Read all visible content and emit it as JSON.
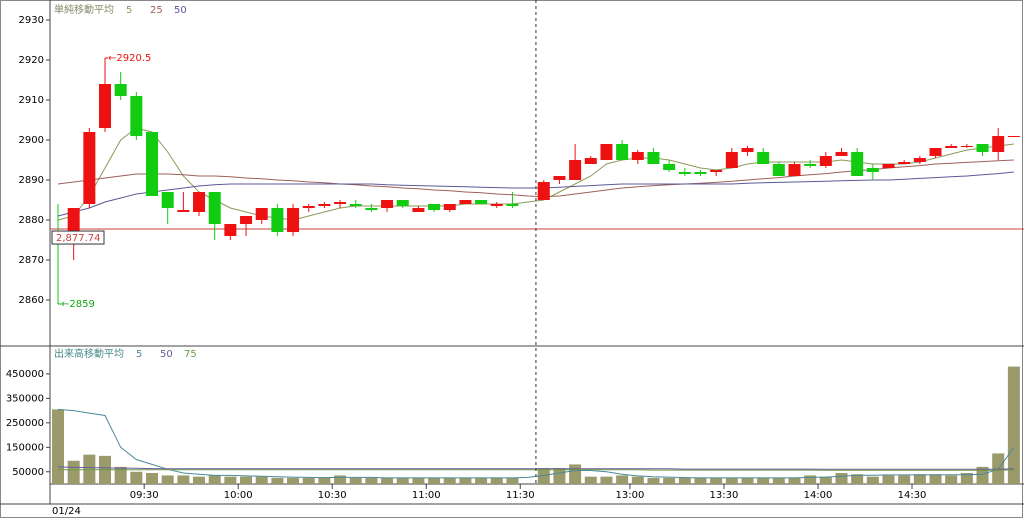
{
  "chart_data": [
    {
      "type": "candlestick",
      "legend_title": "単純移動平均",
      "ylim": [
        2848.75,
        2935
      ],
      "yticks": [
        2860,
        2870,
        2880,
        2890,
        2900,
        2910,
        2920,
        2930
      ],
      "up_color": "#ee1111",
      "down_color": "#11cc11",
      "open": [
        2877,
        2875,
        2884,
        2903,
        2914,
        2911,
        2902,
        2887,
        2882,
        2882,
        2887,
        2876,
        2879,
        2880,
        2883,
        2877,
        2883,
        2883.5,
        2884,
        2884,
        2883,
        2883,
        2885,
        2882,
        2884,
        2882.5,
        2884,
        2885,
        2883.5,
        2884,
        null,
        2885,
        2890,
        2890,
        2894,
        2895,
        2899,
        2895,
        2897,
        2894,
        2892,
        2892,
        2892,
        2893,
        2897,
        2897,
        2894,
        2891,
        2894,
        2893.5,
        2896,
        2897,
        2893,
        2893,
        2894,
        2894.5,
        2896,
        2898,
        2898.5,
        2899,
        2897,
        2901
      ],
      "high": [
        2884,
        2883,
        2903,
        2920.5,
        2917,
        2912,
        2902,
        2887,
        2887,
        2887,
        2887,
        2879,
        2881,
        2883,
        2884,
        2884,
        2884,
        2884.5,
        2885,
        2885,
        2884,
        2885,
        2885,
        2883.5,
        2884,
        2884,
        2885,
        2885,
        2884.5,
        2887,
        null,
        2890,
        2891,
        2899,
        2896,
        2899,
        2900,
        2897.5,
        2898,
        2895,
        2893,
        2892.5,
        2892.5,
        2898,
        2898.5,
        2898,
        2894.5,
        2894.5,
        2895,
        2897,
        2898,
        2898,
        2894,
        2894,
        2895,
        2896,
        2898,
        2899,
        2899,
        2899,
        2903,
        2901
      ],
      "low": [
        2859,
        2870,
        2883,
        2902,
        2910,
        2900,
        2886,
        2879,
        2882,
        2881,
        2875,
        2875,
        2876,
        2879,
        2876,
        2876,
        2882,
        2883,
        2883,
        2883,
        2882,
        2882,
        2883,
        2882,
        2882,
        2882,
        2884,
        2884,
        2883,
        2883,
        null,
        2885,
        2889,
        2890,
        2894,
        2895,
        2895,
        2894,
        2894,
        2892,
        2891,
        2891,
        2891,
        2893,
        2896,
        2894,
        2891,
        2891,
        2893,
        2893,
        2896,
        2891,
        2890,
        2893,
        2894,
        2894,
        2895.5,
        2898,
        2898,
        2896,
        2895,
        2901
      ],
      "close": [
        2875,
        2883,
        2902,
        2914,
        2911,
        2901,
        2886,
        2883,
        2882.5,
        2887,
        2879,
        2879,
        2881,
        2883,
        2877,
        2883,
        2883.5,
        2884,
        2884.5,
        2883.5,
        2882.5,
        2885,
        2883.5,
        2883,
        2882.5,
        2884,
        2885,
        2884,
        2884,
        2883.5,
        null,
        2889.5,
        2891,
        2895,
        2895.5,
        2899,
        2895,
        2897,
        2894,
        2892.5,
        2891.5,
        2891.5,
        2892.5,
        2897,
        2898,
        2894,
        2891,
        2894,
        2893.5,
        2896,
        2897,
        2891,
        2892,
        2894,
        2894.5,
        2895.5,
        2898,
        2898.5,
        2898.5,
        2897,
        2901,
        2901
      ],
      "series": [
        {
          "name": "5",
          "color": "#8c9a5a",
          "values": [
            2880,
            2881,
            2886,
            2893,
            2900,
            2903,
            2902,
            2897,
            2891,
            2887,
            2885,
            2883,
            2882,
            2881,
            2880.5,
            2880,
            2881,
            2882,
            2883,
            2883.5,
            2883.5,
            2883.5,
            2883.5,
            2883.5,
            2883.5,
            2883.5,
            2884,
            2884,
            2884,
            2884,
            2884.5,
            2885,
            2887,
            2889,
            2891,
            2894,
            2895,
            2895.5,
            2895.5,
            2895,
            2894,
            2893,
            2892.5,
            2893,
            2894,
            2894.5,
            2894.5,
            2894.5,
            2894.5,
            2894.5,
            2895,
            2894.5,
            2894,
            2894,
            2894,
            2894.5,
            2895.5,
            2896.5,
            2897.5,
            2898,
            2898.5,
            2899
          ]
        },
        {
          "name": "25",
          "color": "#a0605a",
          "values": [
            2889,
            2889.5,
            2890,
            2890.5,
            2891,
            2891.5,
            2891.5,
            2891.5,
            2891.3,
            2891,
            2891,
            2890.8,
            2890.5,
            2890.3,
            2890,
            2889.8,
            2889.5,
            2889.3,
            2889,
            2888.8,
            2888.5,
            2888.3,
            2888,
            2887.8,
            2887.5,
            2887.3,
            2887,
            2886.8,
            2886.5,
            2886.3,
            2886,
            2885.8,
            2886,
            2886.5,
            2887,
            2887.5,
            2888,
            2888.3,
            2888.6,
            2888.8,
            2889,
            2889.2,
            2889.4,
            2889.7,
            2890,
            2890.3,
            2890.6,
            2891,
            2891.3,
            2891.6,
            2892,
            2892.3,
            2892.6,
            2893,
            2893.3,
            2893.6,
            2894,
            2894.2,
            2894.4,
            2894.6,
            2894.8,
            2895
          ]
        },
        {
          "name": "50",
          "color": "#5a5a9a",
          "values": [
            2881,
            2882,
            2883,
            2884.5,
            2885.5,
            2886.5,
            2887,
            2887.5,
            2888,
            2888.5,
            2888.8,
            2889,
            2889,
            2889,
            2889,
            2889,
            2889,
            2889,
            2889,
            2889,
            2889,
            2888.8,
            2888.7,
            2888.6,
            2888.5,
            2888.4,
            2888.3,
            2888.2,
            2888.1,
            2888,
            2888,
            2888,
            2888.2,
            2888.4,
            2888.6,
            2888.8,
            2889,
            2889,
            2889,
            2889,
            2889,
            2889,
            2889,
            2889,
            2889.2,
            2889.3,
            2889.4,
            2889.5,
            2889.6,
            2889.7,
            2889.8,
            2889.9,
            2890,
            2890,
            2890.2,
            2890.4,
            2890.6,
            2890.8,
            2891,
            2891.3,
            2891.6,
            2892
          ]
        }
      ],
      "reference_line": {
        "value": 2877.74,
        "label": "2,877.74",
        "color": "#c84040"
      },
      "annotations": [
        {
          "value": 2920.5,
          "label": "←2920.5",
          "color": "#ee1111"
        },
        {
          "value": 2859,
          "label": "←2859",
          "color": "#11aa11"
        }
      ]
    },
    {
      "type": "bar",
      "legend_title": "出来高移動平均",
      "date": "01/24",
      "color": "#9a9a6a",
      "ylim": [
        0,
        560000
      ],
      "yticks": [
        50000,
        150000,
        250000,
        350000,
        450000
      ],
      "categories": [
        null,
        null,
        null,
        null,
        null,
        null,
        "09:30",
        null,
        null,
        null,
        null,
        null,
        "10:00",
        null,
        null,
        null,
        null,
        null,
        "10:30",
        null,
        null,
        null,
        null,
        null,
        "11:00",
        null,
        null,
        null,
        null,
        null,
        "11:30",
        null,
        null,
        null,
        null,
        null,
        null,
        "13:00",
        null,
        null,
        null,
        null,
        null,
        "13:30",
        null,
        null,
        null,
        null,
        null,
        "14:00",
        null,
        null,
        null,
        null,
        null,
        "14:30",
        null,
        null,
        null,
        null,
        null,
        null
      ],
      "values": [
        305000,
        95000,
        120000,
        115000,
        70000,
        50000,
        45000,
        35000,
        35000,
        30000,
        35000,
        30000,
        30000,
        30000,
        25000,
        25000,
        25000,
        25000,
        35000,
        25000,
        25000,
        25000,
        25000,
        25000,
        25000,
        25000,
        25000,
        25000,
        25000,
        25000,
        null,
        65000,
        65000,
        80000,
        30000,
        30000,
        35000,
        30000,
        25000,
        25000,
        25000,
        25000,
        25000,
        25000,
        25000,
        25000,
        25000,
        25000,
        35000,
        30000,
        45000,
        40000,
        30000,
        35000,
        35000,
        40000,
        40000,
        35000,
        45000,
        70000,
        125000,
        480000
      ],
      "series": [
        {
          "name": "5",
          "color": "#4a8a9a",
          "values": [
            305000,
            300000,
            290000,
            280000,
            150000,
            100000,
            80000,
            60000,
            45000,
            40000,
            35000,
            35000,
            33000,
            32000,
            30000,
            28000,
            27000,
            26000,
            27000,
            27000,
            27000,
            25000,
            25000,
            25000,
            25000,
            25000,
            25000,
            25000,
            25000,
            25000,
            27000,
            35000,
            45000,
            55000,
            55000,
            50000,
            40000,
            33000,
            30000,
            28000,
            26000,
            25000,
            25000,
            25000,
            25000,
            25000,
            25000,
            25000,
            27000,
            28000,
            32000,
            35000,
            36000,
            37000,
            37000,
            37000,
            37000,
            38000,
            38000,
            40000,
            60000,
            150000
          ]
        },
        {
          "name": "50",
          "color": "#6a5a9a",
          "values": [
            70000,
            68000,
            67000,
            66000,
            65000,
            64000,
            63000,
            62000,
            62000,
            62000,
            62000,
            62000,
            62000,
            62000,
            62000,
            62000,
            62000,
            62000,
            62000,
            62000,
            62000,
            62000,
            62000,
            62000,
            62000,
            62000,
            62000,
            62000,
            62000,
            62000,
            62000,
            62000,
            62000,
            62000,
            62000,
            62000,
            62000,
            62000,
            62000,
            62000,
            61000,
            61000,
            61000,
            61000,
            61000,
            61000,
            61000,
            61000,
            61000,
            60000,
            60000,
            60000,
            60000,
            60000,
            60000,
            60000,
            60000,
            60000,
            60000,
            60000,
            60000,
            62000
          ]
        },
        {
          "name": "75",
          "color": "#6a9a4a",
          "values": [
            58000,
            58000,
            58000,
            58000,
            58000,
            58000,
            58000,
            58000,
            58000,
            58000,
            58000,
            58000,
            58000,
            58000,
            58000,
            58000,
            58000,
            58000,
            58000,
            58000,
            58000,
            58000,
            58000,
            58000,
            58000,
            58000,
            58000,
            58000,
            58000,
            58000,
            58000,
            58000,
            58000,
            58000,
            58000,
            58000,
            58000,
            58000,
            57000,
            57000,
            57000,
            57000,
            57000,
            57000,
            57000,
            57000,
            57000,
            57000,
            57000,
            56000,
            56000,
            56000,
            56000,
            56000,
            56000,
            56000,
            56000,
            56000,
            56000,
            56000,
            56000,
            58000
          ]
        }
      ]
    }
  ]
}
